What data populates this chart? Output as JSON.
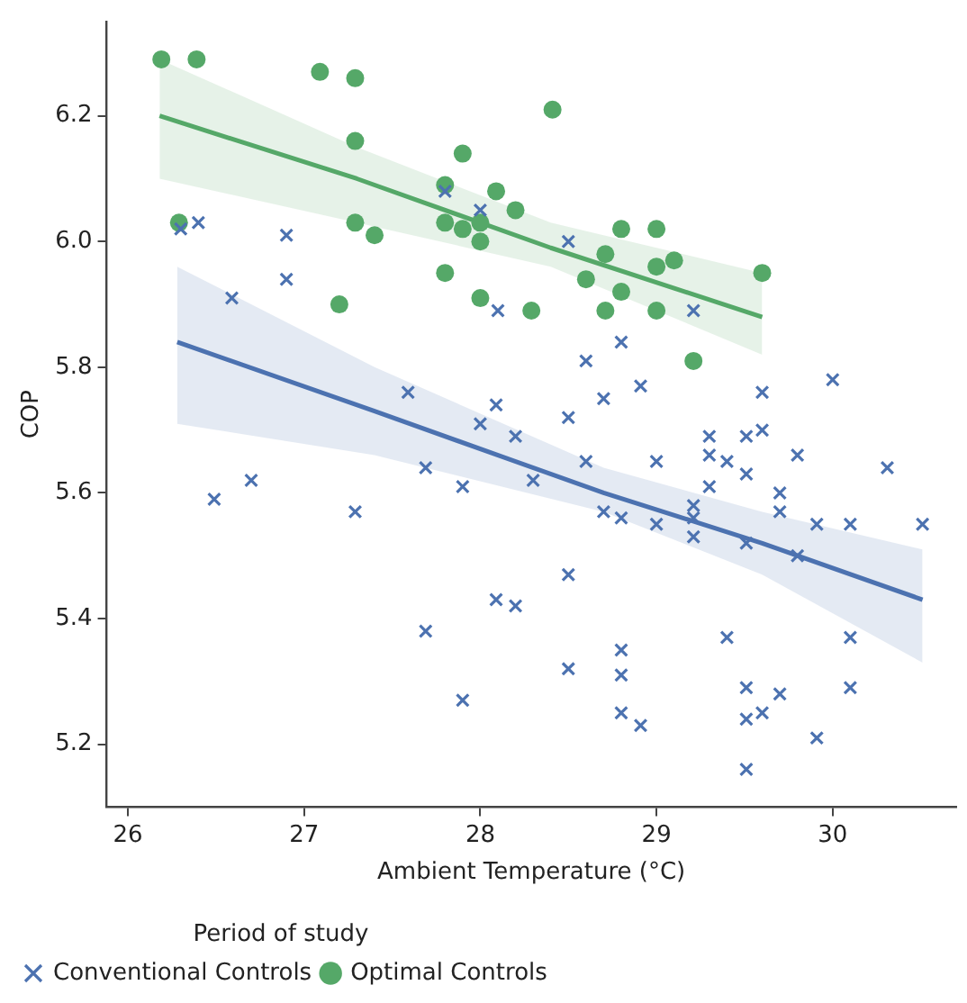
{
  "chart_data": {
    "type": "scatter",
    "xlabel": "Ambient Temperature (°C)",
    "ylabel": "COP",
    "legend_title": "Period of study",
    "legend": "bottom left",
    "grid": false,
    "xlim": [
      25.88,
      30.7
    ],
    "xticks": [
      26,
      27,
      28,
      29,
      30
    ],
    "ylim": [
      5.1,
      6.35
    ],
    "yticks": [
      5.2,
      5.4,
      5.6,
      5.8,
      {
        "value": 6.0,
        "label": "6.0"
      },
      6.2
    ],
    "series": [
      {
        "name": "Conventional Controls",
        "color": "#4c72b0",
        "marker": "cross",
        "x": [
          26.3,
          26.4,
          26.9,
          26.9,
          26.59,
          27.8,
          28.0,
          28.1,
          28.5,
          29.21,
          27.59,
          28.09,
          28.0,
          28.2,
          28.8,
          28.6,
          28.91,
          28.7,
          28.5,
          29.6,
          30.0,
          29.6,
          29.51,
          29.3,
          26.49,
          26.7,
          27.29,
          27.69,
          27.9,
          27.69,
          27.9,
          28.09,
          28.2,
          28.3,
          28.6,
          29.0,
          29.3,
          29.4,
          29.51,
          29.3,
          29.8,
          30.31,
          28.7,
          28.8,
          29.0,
          29.21,
          29.21,
          29.21,
          29.51,
          29.7,
          29.7,
          29.91,
          30.1,
          30.51,
          29.8,
          28.5,
          29.4,
          30.1,
          28.5,
          28.8,
          28.8,
          28.8,
          28.91,
          29.51,
          29.7,
          30.1,
          29.51,
          29.6,
          29.91,
          29.51
        ],
        "values": [
          6.02,
          6.03,
          6.01,
          5.94,
          5.91,
          6.08,
          6.05,
          5.89,
          6.0,
          5.89,
          5.76,
          5.74,
          5.71,
          5.69,
          5.84,
          5.81,
          5.77,
          5.75,
          5.72,
          5.76,
          5.78,
          5.7,
          5.69,
          5.69,
          5.59,
          5.62,
          5.57,
          5.64,
          5.61,
          5.38,
          5.27,
          5.43,
          5.42,
          5.62,
          5.65,
          5.65,
          5.66,
          5.65,
          5.63,
          5.61,
          5.66,
          5.64,
          5.57,
          5.56,
          5.55,
          5.58,
          5.56,
          5.53,
          5.52,
          5.6,
          5.57,
          5.55,
          5.55,
          5.55,
          5.5,
          5.47,
          5.37,
          5.37,
          5.32,
          5.35,
          5.31,
          5.25,
          5.23,
          5.29,
          5.28,
          5.29,
          5.24,
          5.25,
          5.21,
          5.16
        ]
      },
      {
        "name": "Optimal Controls",
        "color": "#55a868",
        "marker": "circle",
        "x": [
          26.19,
          26.39,
          27.09,
          27.29,
          27.29,
          27.9,
          27.8,
          28.09,
          28.2,
          26.29,
          27.29,
          27.4,
          27.8,
          27.9,
          28.0,
          28.0,
          27.8,
          27.2,
          28.0,
          28.29,
          28.41,
          28.8,
          29.0,
          28.71,
          29.0,
          29.1,
          28.6,
          28.8,
          29.0,
          28.71,
          29.6,
          29.21
        ],
        "values": [
          6.29,
          6.29,
          6.27,
          6.26,
          6.16,
          6.14,
          6.09,
          6.08,
          6.05,
          6.03,
          6.03,
          6.01,
          6.03,
          6.02,
          6.03,
          6.0,
          5.95,
          5.9,
          5.91,
          5.89,
          6.21,
          6.02,
          6.02,
          5.98,
          5.96,
          5.97,
          5.94,
          5.92,
          5.89,
          5.89,
          5.95,
          5.81
        ]
      },
      {
        "type": "line",
        "color": "#4c72b0",
        "marker": "none",
        "x": [
          26.28,
          27.4,
          28.7,
          29.6,
          30.51
        ],
        "values": [
          5.84,
          5.73,
          5.6,
          5.52,
          5.43
        ],
        "lower": [
          5.71,
          5.66,
          5.57,
          5.47,
          5.33
        ],
        "upper": [
          5.96,
          5.8,
          5.64,
          5.57,
          5.51
        ]
      },
      {
        "type": "line",
        "color": "#55a868",
        "marker": "none",
        "x": [
          26.18,
          27.3,
          28.4,
          29.6
        ],
        "values": [
          6.2,
          6.1,
          5.99,
          5.88
        ],
        "lower": [
          6.1,
          6.03,
          5.96,
          5.82
        ],
        "upper": [
          6.29,
          6.15,
          6.03,
          5.95
        ]
      }
    ]
  }
}
